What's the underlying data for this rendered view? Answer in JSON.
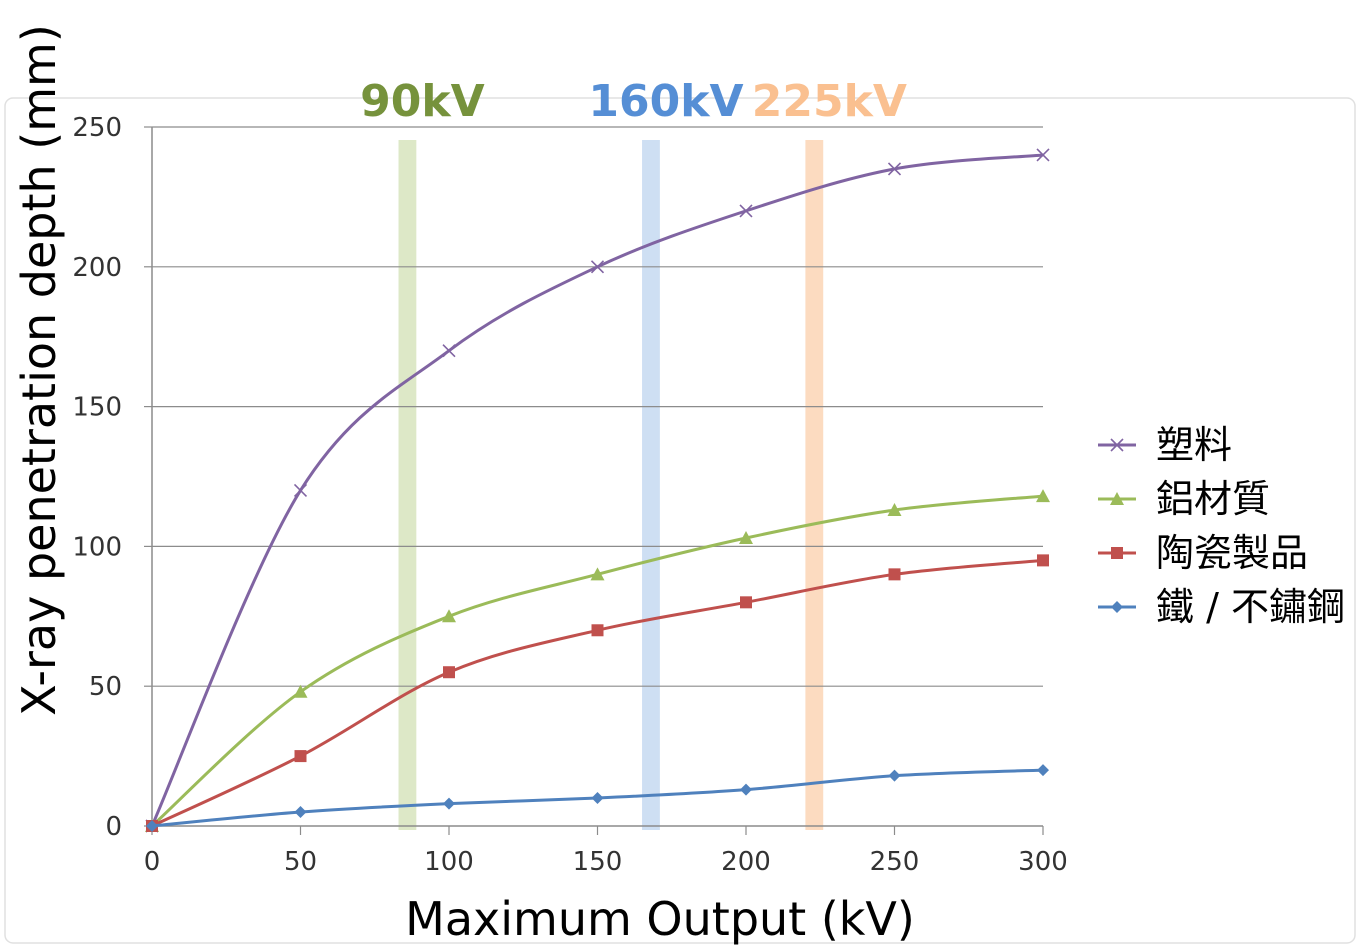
{
  "chart_data": {
    "type": "line",
    "xlabel": "Maximum Output (kV)",
    "ylabel": "X-ray penetration depth (mm)",
    "xlim": [
      0,
      300
    ],
    "ylim": [
      0,
      250
    ],
    "x_ticks": [
      "0",
      "50",
      "100",
      "150",
      "200",
      "250",
      "300"
    ],
    "y_ticks": [
      "0",
      "50",
      "100",
      "150",
      "200",
      "250"
    ],
    "grid": "horizontal",
    "legend_position": "right",
    "x": [
      0,
      50,
      100,
      150,
      200,
      250,
      300
    ],
    "series": [
      {
        "name": "塑料",
        "marker": "x-mark",
        "color": "#8064A2",
        "values": [
          0,
          120,
          170,
          200,
          220,
          235,
          240
        ]
      },
      {
        "name": "鋁材質",
        "marker": "triangle",
        "color": "#9BBB59",
        "values": [
          0,
          48,
          75,
          90,
          103,
          113,
          118
        ]
      },
      {
        "name": "陶瓷製品",
        "marker": "square",
        "color": "#C0504D",
        "values": [
          0,
          25,
          55,
          70,
          80,
          90,
          95
        ]
      },
      {
        "name": "鐵 / 不鏽鋼",
        "marker": "diamond",
        "color": "#4F81BD",
        "values": [
          0,
          5,
          8,
          10,
          13,
          18,
          20
        ]
      }
    ],
    "bands": [
      {
        "label": "90kV",
        "from": 83,
        "to": 89,
        "color": "#D7E4BD",
        "label_color": "#76923C"
      },
      {
        "label": "160kV",
        "from": 165,
        "to": 171,
        "color": "#C6D9F1",
        "label_color": "#558ED5"
      },
      {
        "label": "225kV",
        "from": 220,
        "to": 226,
        "color": "#FCD5B5",
        "label_color": "#FAC090"
      }
    ]
  }
}
